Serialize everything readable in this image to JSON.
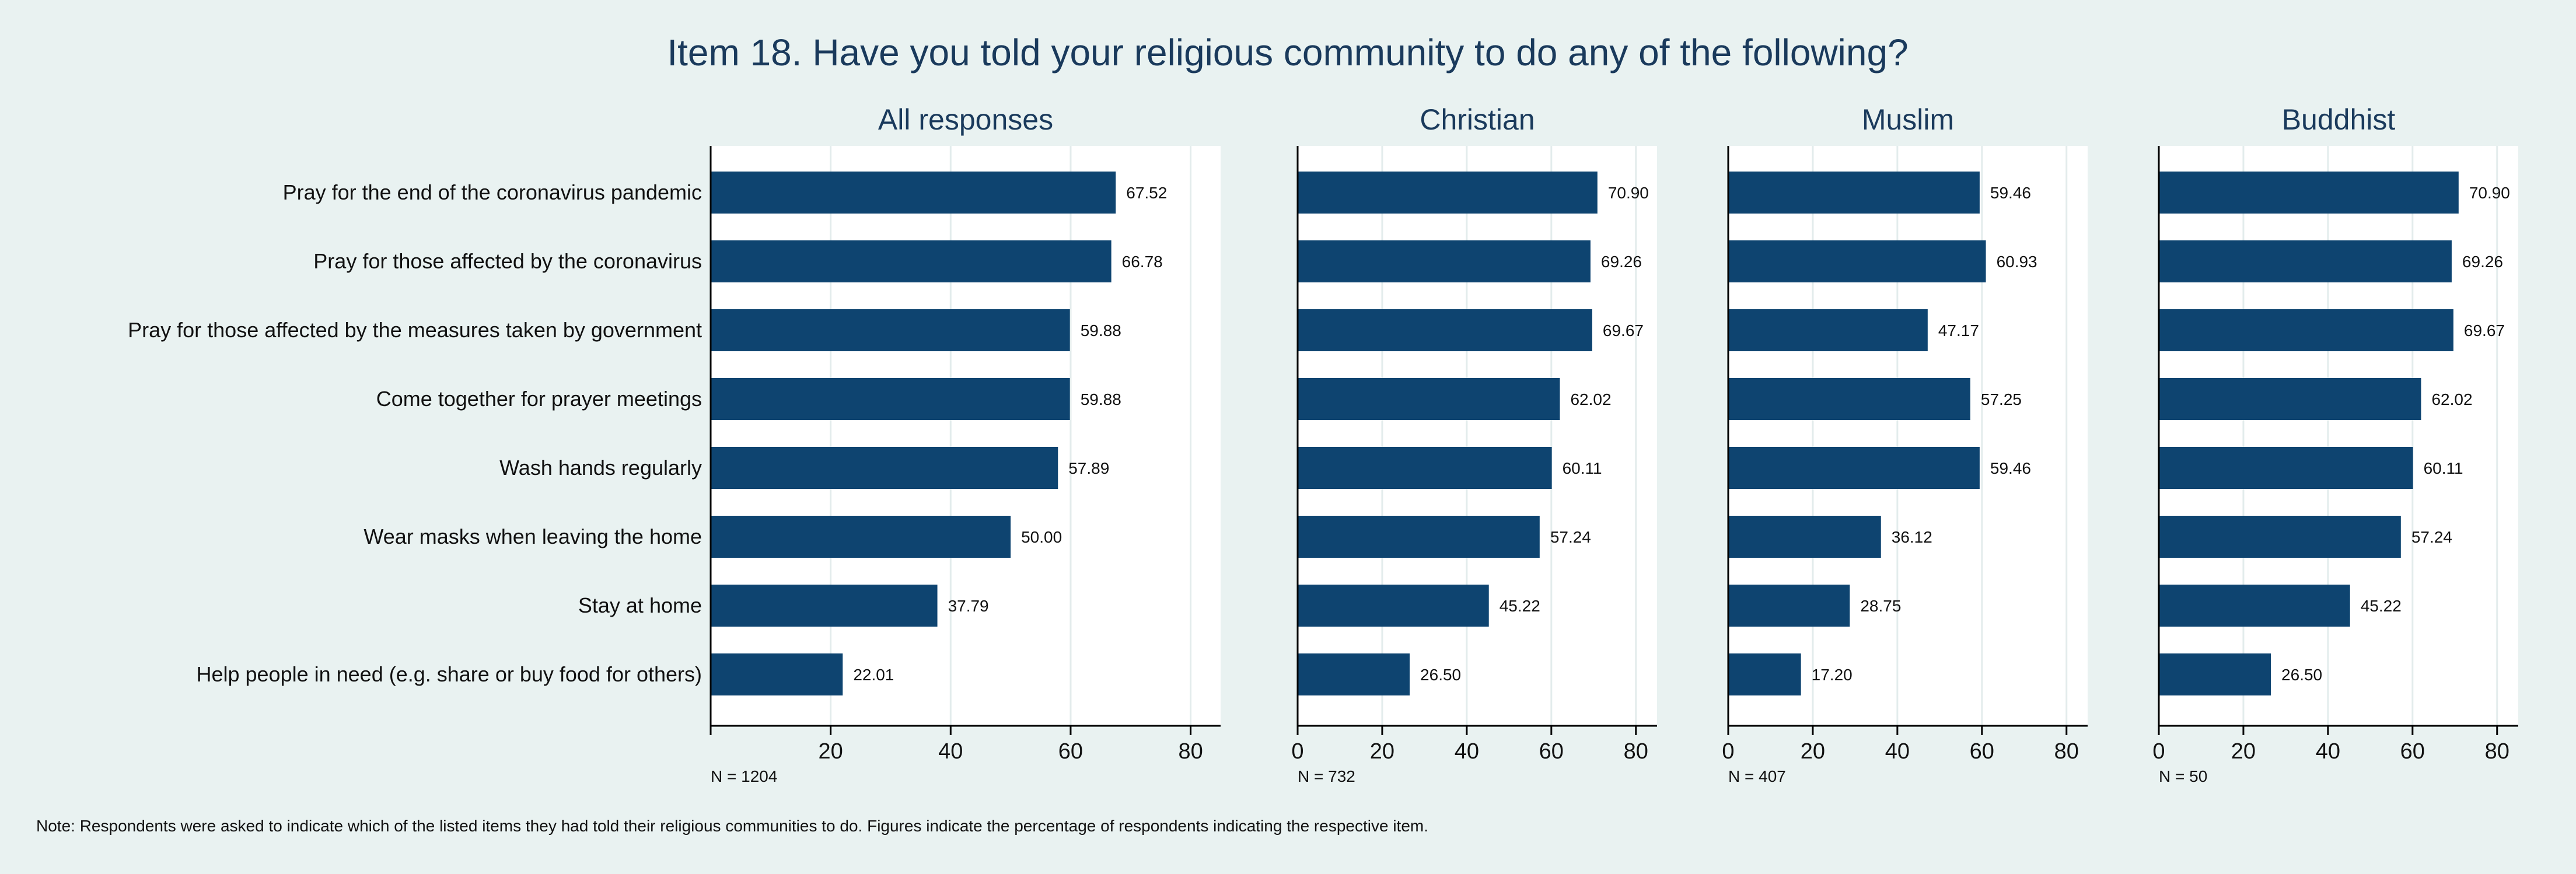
{
  "chart_data": {
    "type": "bar",
    "orientation": "horizontal",
    "title": "Item 18. Have you told your religious community to do any of the following?",
    "categories": [
      "Pray for the end of the coronavirus pandemic",
      "Pray for those affected by the coronavirus",
      "Pray for those affected by the measures taken by government",
      "Come together for prayer meetings",
      "Wash hands regularly",
      "Wear masks when leaving the home",
      "Stay at home",
      "Help people in need (e.g. share or buy food for others)"
    ],
    "xlim": [
      0,
      85
    ],
    "xticks": [
      "0",
      "20",
      "40",
      "60",
      "80"
    ],
    "grid": true,
    "bar_color": "#0e4470",
    "panels": [
      {
        "name": "All responses",
        "n_label": "N = 1204",
        "values": [
          67.52,
          66.78,
          59.88,
          59.88,
          57.89,
          50.0,
          37.79,
          22.01
        ],
        "labels": [
          "67.52",
          "66.78",
          "59.88",
          "59.88",
          "57.89",
          "50.00",
          "37.79",
          "22.01"
        ]
      },
      {
        "name": "Christian",
        "n_label": "N = 732",
        "values": [
          70.9,
          69.26,
          69.67,
          62.02,
          60.11,
          57.24,
          45.22,
          26.5
        ],
        "labels": [
          "70.90",
          "69.26",
          "69.67",
          "62.02",
          "60.11",
          "57.24",
          "45.22",
          "26.50"
        ]
      },
      {
        "name": "Muslim",
        "n_label": "N = 407",
        "values": [
          59.46,
          60.93,
          47.17,
          57.25,
          59.46,
          36.12,
          28.75,
          17.2
        ],
        "labels": [
          "59.46",
          "60.93",
          "47.17",
          "57.25",
          "59.46",
          "36.12",
          "28.75",
          "17.20"
        ]
      },
      {
        "name": "Buddhist",
        "n_label": "N = 50",
        "values": [
          70.9,
          69.26,
          69.67,
          62.02,
          60.11,
          57.24,
          45.22,
          26.5
        ],
        "labels": [
          "70.90",
          "69.26",
          "69.67",
          "62.02",
          "60.11",
          "57.24",
          "45.22",
          "26.50"
        ]
      }
    ],
    "note": "Note: Respondents were asked to indicate which of the listed items they had told their religious communities to do. Figures indicate the percentage of respondents indicating the respective item."
  }
}
